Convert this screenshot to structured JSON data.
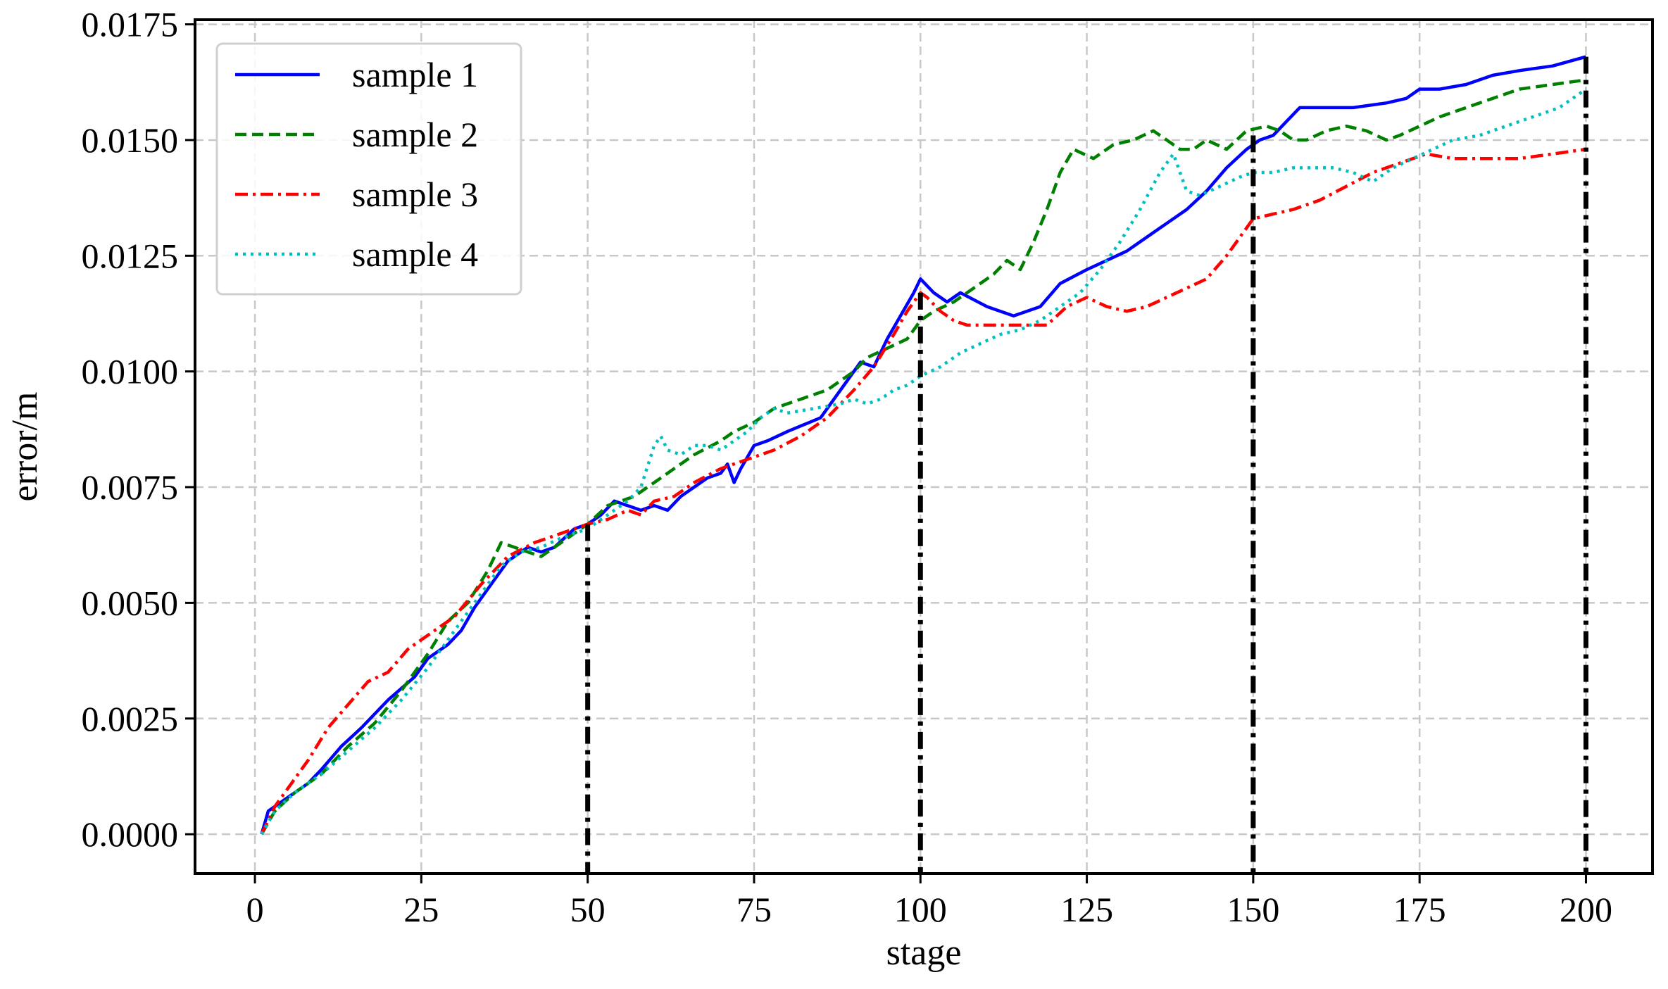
{
  "chart_data": {
    "type": "line",
    "xlabel": "stage",
    "ylabel": "error/m",
    "xlim": [
      -9,
      210
    ],
    "ylim": [
      -0.00085,
      0.0176
    ],
    "xticks": [
      0,
      25,
      50,
      75,
      100,
      125,
      150,
      175,
      200
    ],
    "xtick_labels": [
      "0",
      "25",
      "50",
      "75",
      "100",
      "125",
      "150",
      "175",
      "200"
    ],
    "yticks": [
      0.0,
      0.0025,
      0.005,
      0.0075,
      0.01,
      0.0125,
      0.015,
      0.0175
    ],
    "ytick_labels": [
      "0.0000",
      "0.0025",
      "0.0050",
      "0.0075",
      "0.0100",
      "0.0125",
      "0.0150",
      "0.0175"
    ],
    "grid": true,
    "legend_position": "top-left",
    "stage_markers": [
      {
        "x": 50,
        "y_top": 0.0067
      },
      {
        "x": 100,
        "y_top": 0.0117
      },
      {
        "x": 150,
        "y_top": 0.0151
      },
      {
        "x": 200,
        "y_top": 0.0168
      }
    ],
    "series": [
      {
        "name": "sample 1",
        "color": "#0000ff",
        "style": "solid",
        "x": [
          1,
          2,
          5,
          8,
          10,
          13,
          16,
          20,
          24,
          26,
          29,
          31,
          33,
          36,
          38,
          41,
          43,
          45,
          48,
          50,
          52,
          54,
          56,
          58,
          60,
          62,
          64,
          66,
          68,
          70,
          71,
          72,
          73,
          75,
          77,
          80,
          85,
          88,
          91,
          93,
          95,
          97,
          99,
          100,
          102,
          104,
          106,
          110,
          114,
          118,
          121,
          125,
          128,
          131,
          134,
          137,
          140,
          143,
          146,
          149,
          151,
          153,
          155,
          157,
          160,
          165,
          170,
          173,
          175,
          178,
          182,
          186,
          190,
          195,
          200
        ],
        "values": [
          0.0,
          0.0005,
          0.0008,
          0.0011,
          0.0014,
          0.0019,
          0.0023,
          0.0029,
          0.0034,
          0.0038,
          0.0041,
          0.0044,
          0.0049,
          0.0055,
          0.0059,
          0.0062,
          0.0061,
          0.0062,
          0.0066,
          0.0067,
          0.0069,
          0.0072,
          0.0071,
          0.007,
          0.0071,
          0.007,
          0.0073,
          0.0075,
          0.0077,
          0.0078,
          0.008,
          0.0076,
          0.0079,
          0.0084,
          0.0085,
          0.0087,
          0.009,
          0.0096,
          0.0102,
          0.0101,
          0.0107,
          0.0112,
          0.0117,
          0.012,
          0.0117,
          0.0115,
          0.0117,
          0.0114,
          0.0112,
          0.0114,
          0.0119,
          0.0122,
          0.0124,
          0.0126,
          0.0129,
          0.0132,
          0.0135,
          0.0139,
          0.0144,
          0.0148,
          0.015,
          0.0151,
          0.0154,
          0.0157,
          0.0157,
          0.0157,
          0.0158,
          0.0159,
          0.0161,
          0.0161,
          0.0162,
          0.0164,
          0.0165,
          0.0166,
          0.0168
        ]
      },
      {
        "name": "sample 2",
        "color": "#008000",
        "style": "dashed",
        "x": [
          1,
          3,
          6,
          10,
          14,
          18,
          22,
          26,
          29,
          32,
          35,
          37,
          39,
          41,
          43,
          46,
          50,
          53,
          57,
          60,
          63,
          66,
          70,
          72,
          75,
          78,
          82,
          86,
          90,
          92,
          95,
          98,
          100,
          102,
          105,
          108,
          111,
          113,
          115,
          117,
          119,
          121,
          123,
          126,
          129,
          132,
          135,
          137,
          139,
          141,
          143,
          146,
          149,
          152,
          154,
          156,
          158,
          161,
          164,
          167,
          170,
          172,
          175,
          178,
          182,
          186,
          190,
          195,
          200
        ],
        "values": [
          0.0,
          0.0005,
          0.0009,
          0.0013,
          0.0019,
          0.0024,
          0.0031,
          0.0039,
          0.0046,
          0.005,
          0.0057,
          0.0063,
          0.0062,
          0.0061,
          0.006,
          0.0063,
          0.0067,
          0.0071,
          0.0073,
          0.0076,
          0.0079,
          0.0082,
          0.0085,
          0.0087,
          0.0089,
          0.0092,
          0.0094,
          0.0096,
          0.01,
          0.0103,
          0.0105,
          0.0107,
          0.0111,
          0.0113,
          0.0115,
          0.0118,
          0.0121,
          0.0124,
          0.0122,
          0.0128,
          0.0135,
          0.0143,
          0.0148,
          0.0146,
          0.0149,
          0.015,
          0.0152,
          0.015,
          0.0148,
          0.0148,
          0.015,
          0.0148,
          0.0152,
          0.0153,
          0.0152,
          0.015,
          0.015,
          0.0152,
          0.0153,
          0.0152,
          0.015,
          0.0151,
          0.0153,
          0.0155,
          0.0157,
          0.0159,
          0.0161,
          0.0162,
          0.0163
        ]
      },
      {
        "name": "sample 3",
        "color": "#ff0000",
        "style": "dashdot",
        "x": [
          1,
          3,
          5,
          8,
          11,
          14,
          17,
          20,
          23,
          26,
          30,
          34,
          38,
          42,
          46,
          50,
          53,
          56,
          58,
          60,
          63,
          66,
          70,
          74,
          78,
          82,
          86,
          90,
          93,
          96,
          98,
          100,
          101,
          103,
          105,
          107,
          110,
          113,
          116,
          119,
          122,
          125,
          128,
          131,
          134,
          137,
          140,
          143,
          146,
          150,
          153,
          156,
          160,
          164,
          168,
          172,
          176,
          180,
          185,
          190,
          195,
          200
        ],
        "values": [
          0.0,
          0.0006,
          0.001,
          0.0016,
          0.0023,
          0.0028,
          0.0033,
          0.0035,
          0.004,
          0.0043,
          0.0047,
          0.0054,
          0.006,
          0.0063,
          0.0065,
          0.0067,
          0.0068,
          0.007,
          0.0069,
          0.0072,
          0.0073,
          0.0076,
          0.0079,
          0.0081,
          0.0083,
          0.0086,
          0.009,
          0.0096,
          0.0101,
          0.0108,
          0.0113,
          0.0117,
          0.0116,
          0.0113,
          0.0111,
          0.011,
          0.011,
          0.011,
          0.011,
          0.011,
          0.0114,
          0.0116,
          0.0114,
          0.0113,
          0.0114,
          0.0116,
          0.0118,
          0.012,
          0.0125,
          0.0133,
          0.0134,
          0.0135,
          0.0137,
          0.014,
          0.0143,
          0.0145,
          0.0147,
          0.0146,
          0.0146,
          0.0146,
          0.0147,
          0.0148
        ]
      },
      {
        "name": "sample 4",
        "color": "#00bfbf",
        "style": "dotted",
        "x": [
          1,
          3,
          6,
          10,
          14,
          18,
          22,
          26,
          30,
          34,
          37,
          40,
          43,
          46,
          50,
          53,
          56,
          58,
          60,
          61,
          62,
          64,
          66,
          68,
          70,
          72,
          74,
          76,
          78,
          80,
          84,
          88,
          90,
          92,
          94,
          96,
          98,
          100,
          103,
          106,
          109,
          112,
          115,
          118,
          121,
          124,
          127,
          130,
          133,
          136,
          138,
          140,
          142,
          145,
          148,
          150,
          153,
          156,
          159,
          162,
          165,
          168,
          171,
          174,
          177,
          180,
          184,
          188,
          192,
          196,
          200
        ],
        "values": [
          0.0,
          0.0005,
          0.0009,
          0.0013,
          0.0018,
          0.0023,
          0.0029,
          0.0036,
          0.0044,
          0.0052,
          0.0058,
          0.0061,
          0.0062,
          0.0064,
          0.0066,
          0.0069,
          0.0072,
          0.0075,
          0.0084,
          0.0086,
          0.0083,
          0.0082,
          0.0084,
          0.0084,
          0.0083,
          0.0085,
          0.0087,
          0.009,
          0.0092,
          0.0091,
          0.0092,
          0.0093,
          0.0094,
          0.0093,
          0.0094,
          0.0096,
          0.0097,
          0.0099,
          0.0101,
          0.0104,
          0.0106,
          0.0108,
          0.0109,
          0.0111,
          0.0114,
          0.0117,
          0.0122,
          0.0128,
          0.0135,
          0.0143,
          0.0147,
          0.0139,
          0.0138,
          0.014,
          0.0142,
          0.0143,
          0.0143,
          0.0144,
          0.0144,
          0.0144,
          0.0143,
          0.0141,
          0.0144,
          0.0146,
          0.0148,
          0.015,
          0.0151,
          0.0153,
          0.0155,
          0.0157,
          0.0161
        ]
      }
    ]
  }
}
